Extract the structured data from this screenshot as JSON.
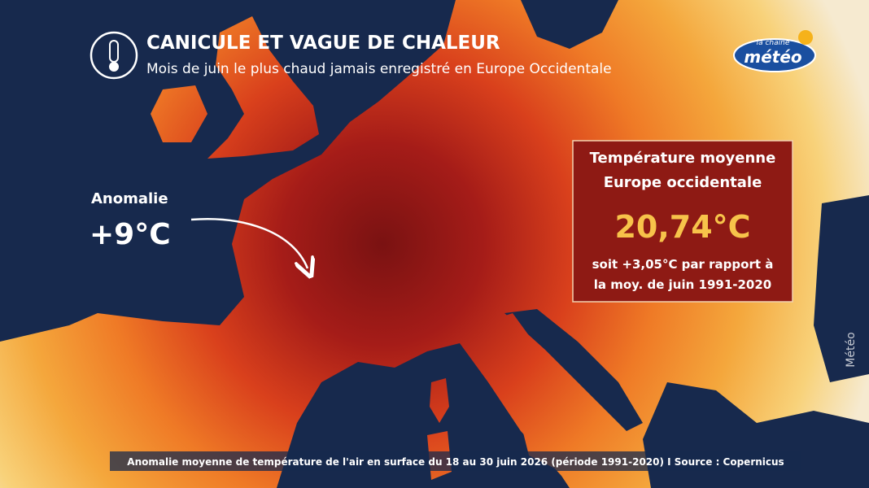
{
  "header": {
    "title": "CANICULE ET VAGUE DE CHALEUR",
    "subtitle": "Mois de juin le plus chaud jamais enregistré en Europe Occidentale"
  },
  "logo": {
    "small": "la chaîne",
    "main": "météo"
  },
  "anomaly": {
    "label": "Anomalie",
    "value": "+9°C"
  },
  "info_box": {
    "heading": [
      "Température moyenne",
      "Europe occidentale"
    ],
    "value": "20,74°C",
    "note": [
      "soit +3,05°C par rapport à",
      "la moy. de juin 1991-2020"
    ]
  },
  "footer": {
    "caption": "Anomalie moyenne de température de l'air en surface du 18 au 30 juin 2026 (période 1991-2020) I Source : Copernicus"
  },
  "watermark": "Météo"
}
